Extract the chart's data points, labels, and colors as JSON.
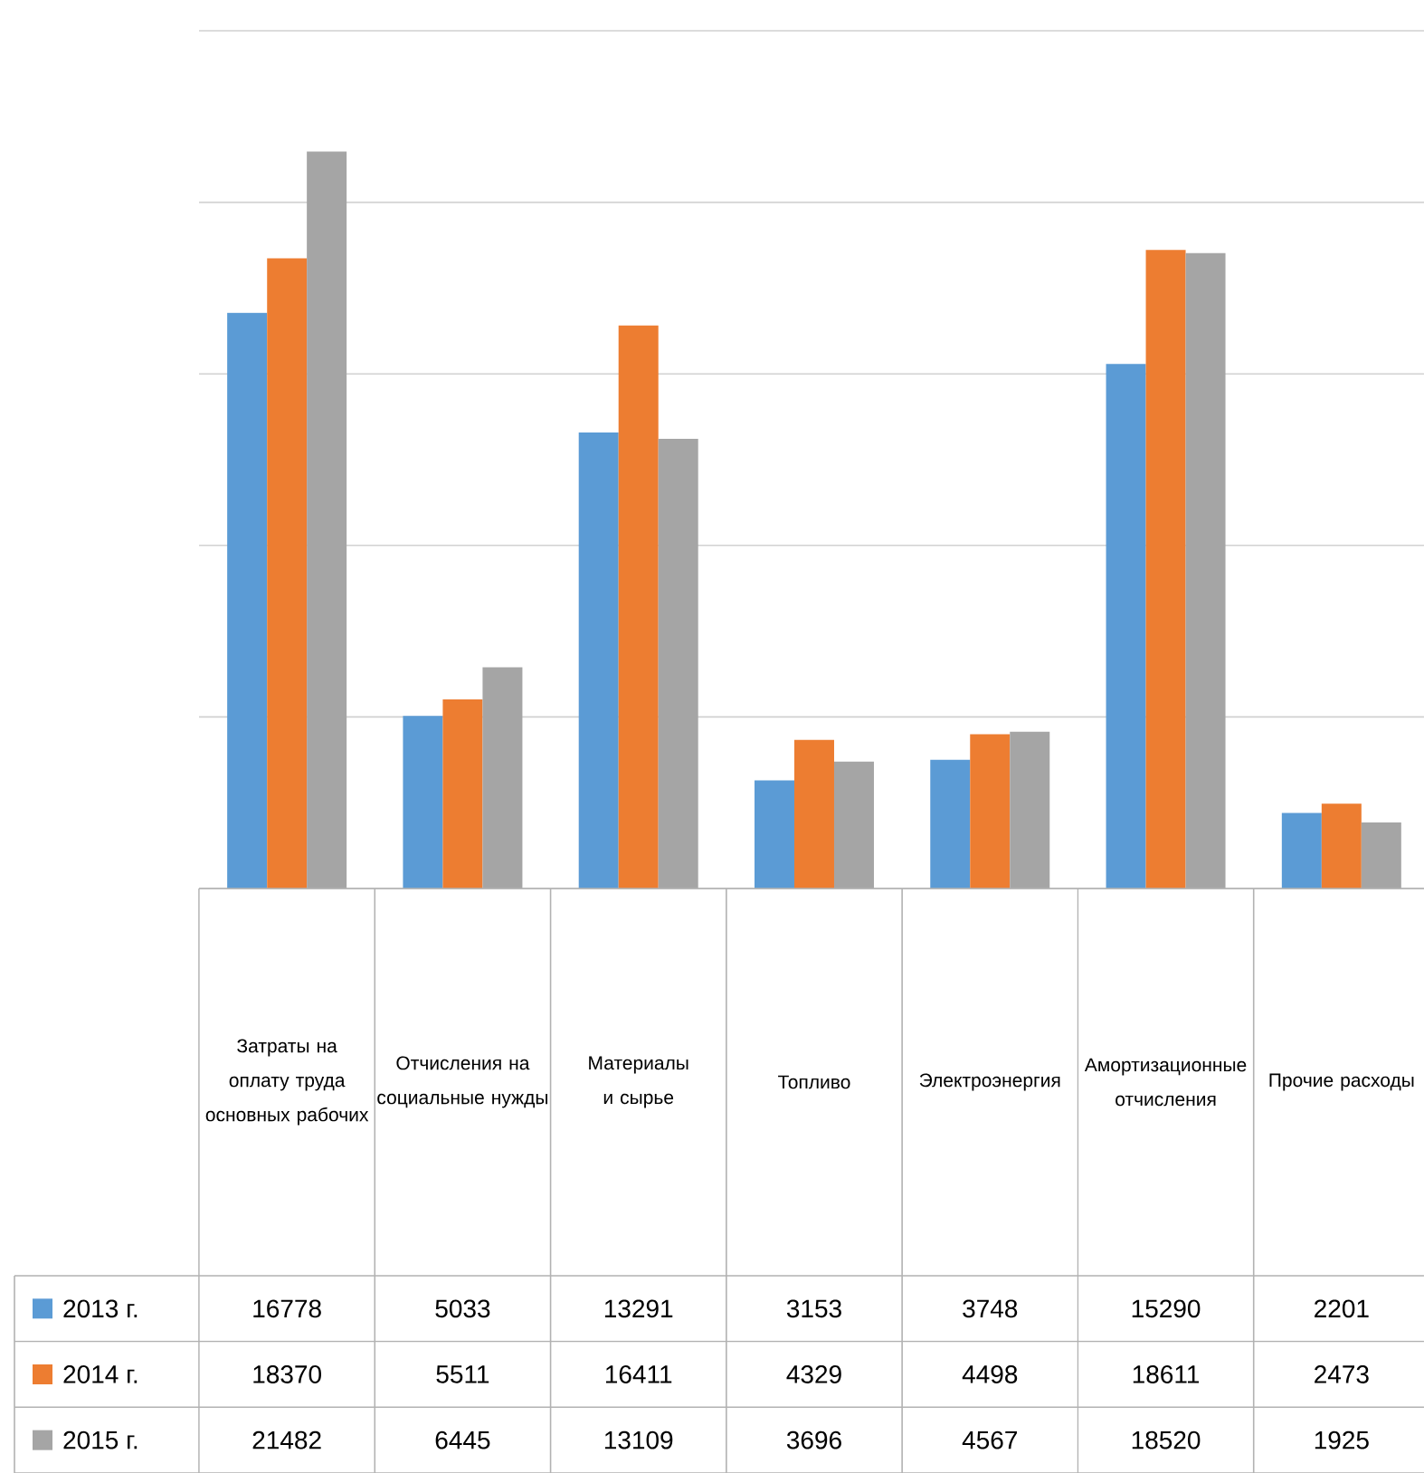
{
  "chart_data": {
    "type": "bar",
    "categories": [
      "Затраты на оплату труда основных рабочих",
      "Отчисления на социальные нужды",
      "Материалы и сырье",
      "Топливо",
      "Электроэнергия",
      "Амортизационные отчисления",
      "Прочие расходы"
    ],
    "series": [
      {
        "name": "2013 г.",
        "color": "#5b9bd5",
        "values": [
          16778,
          5033,
          13291,
          3153,
          3748,
          15290,
          2201
        ]
      },
      {
        "name": "2014 г.",
        "color": "#ed7d31",
        "values": [
          18370,
          5511,
          16411,
          4329,
          4498,
          18611,
          2473
        ]
      },
      {
        "name": "2015 г.",
        "color": "#a5a5a5",
        "values": [
          21482,
          6445,
          13109,
          3696,
          4567,
          18520,
          1925
        ]
      }
    ],
    "ylim": [
      0,
      25000
    ],
    "yticks": [
      {
        "value": 0,
        "label": null
      },
      {
        "value": 5000,
        "label": null
      },
      {
        "value": 10000,
        "label": null
      },
      {
        "value": 15000,
        "label": null
      },
      {
        "value": 20000,
        "label": null
      },
      {
        "value": 25000,
        "label": null
      }
    ],
    "grid": "y",
    "legend": "bottom",
    "data_labels": true,
    "tick_labels": "x"
  }
}
